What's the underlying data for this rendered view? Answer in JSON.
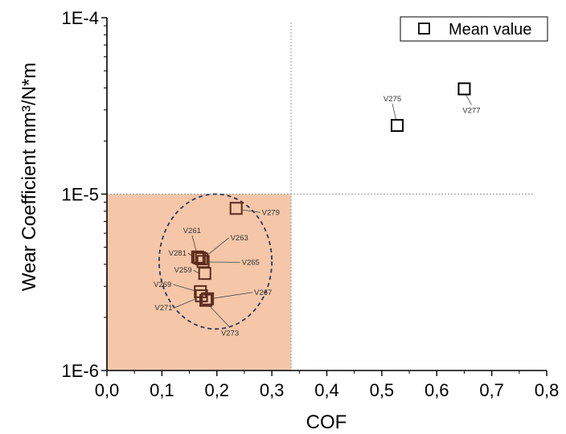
{
  "chart_data": {
    "type": "scatter",
    "xlabel": "COF",
    "ylabel": "Wear Coefficient mm³/N*m",
    "xlim": [
      0.0,
      0.8
    ],
    "ylim": [
      1e-06,
      0.0001
    ],
    "yscale": "log",
    "x_ticks": [
      "0,0",
      "0,1",
      "0,2",
      "0,3",
      "0,4",
      "0,5",
      "0,6",
      "0,7",
      "0,8"
    ],
    "y_ticks": [
      "1E-6",
      "1E-5",
      "1E-4"
    ],
    "legend": {
      "position": "top-right",
      "entries": [
        "Mean value"
      ]
    },
    "region": {
      "x": [
        0.0,
        0.335
      ],
      "y": [
        1e-06,
        1e-05
      ],
      "color": "#f5c6a8"
    },
    "reference_lines": {
      "x": 0.335,
      "y": 1e-05
    },
    "cluster_ellipse": {
      "center_x": 0.2,
      "center_y": 4.2e-06,
      "x_span": [
        0.095,
        0.3
      ],
      "y_span": [
        1.72e-06,
        1e-05
      ]
    },
    "series": [
      {
        "name": "Mean value",
        "marker": "open-square",
        "points": [
          {
            "label": "V275",
            "x": 0.528,
            "y": 2.45e-05
          },
          {
            "label": "V277",
            "x": 0.65,
            "y": 3.95e-05
          },
          {
            "label": "V279",
            "x": 0.235,
            "y": 8.3e-06
          },
          {
            "label": "V261",
            "x": 0.165,
            "y": 4.4e-06
          },
          {
            "label": "V263",
            "x": 0.172,
            "y": 4.3e-06
          },
          {
            "label": "V281",
            "x": 0.168,
            "y": 4.35e-06
          },
          {
            "label": "V265",
            "x": 0.175,
            "y": 4.15e-06
          },
          {
            "label": "V259",
            "x": 0.178,
            "y": 3.55e-06
          },
          {
            "label": "V269",
            "x": 0.17,
            "y": 2.8e-06
          },
          {
            "label": "V271",
            "x": 0.172,
            "y": 2.65e-06
          },
          {
            "label": "V267",
            "x": 0.183,
            "y": 2.55e-06
          },
          {
            "label": "V273",
            "x": 0.18,
            "y": 2.5e-06
          }
        ]
      }
    ],
    "colors": {
      "marker_primary": "#000000",
      "marker_cluster": "#5a2a1a",
      "ellipse": "#2b3a5c",
      "region": "#f5c6a8"
    }
  }
}
